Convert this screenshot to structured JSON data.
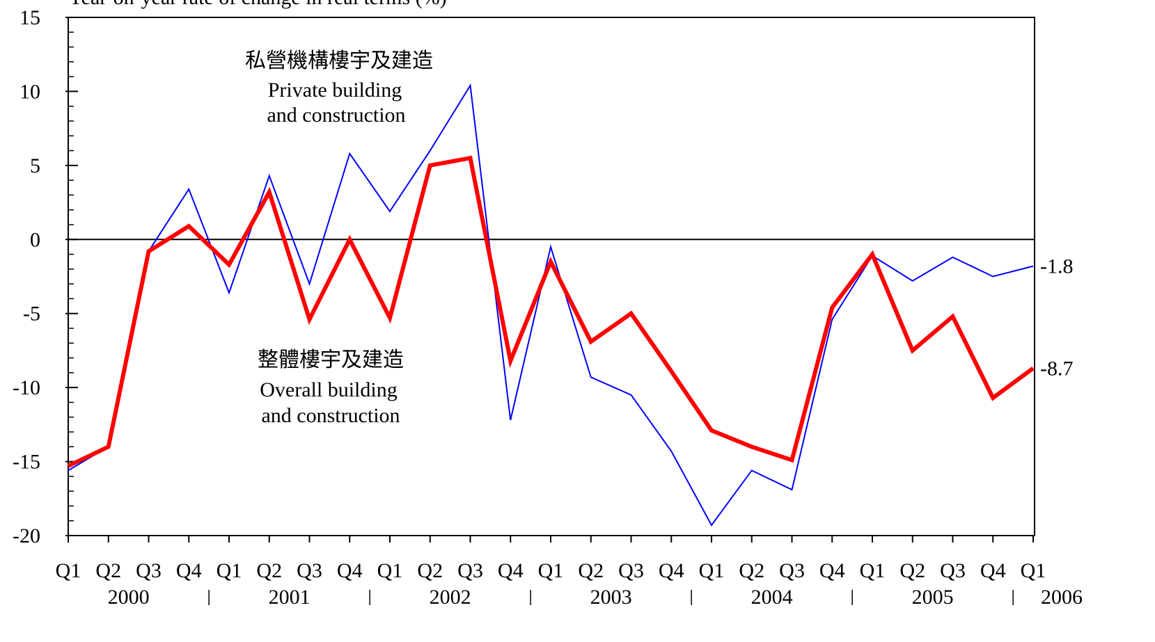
{
  "chart_data": {
    "type": "line",
    "y_axis_label": "Year-on-year rate of change in real terms (%)",
    "categories": [
      "Q1",
      "Q2",
      "Q3",
      "Q4",
      "Q1",
      "Q2",
      "Q3",
      "Q4",
      "Q1",
      "Q2",
      "Q3",
      "Q4",
      "Q1",
      "Q2",
      "Q3",
      "Q4",
      "Q1",
      "Q2",
      "Q3",
      "Q4",
      "Q1",
      "Q2",
      "Q3",
      "Q4",
      "Q1"
    ],
    "years": [
      "2000",
      "2001",
      "2002",
      "2003",
      "2004",
      "2005",
      "2006"
    ],
    "series": [
      {
        "color": "#0000ff",
        "width": 2,
        "values": [
          -15.6,
          -14.0,
          -0.8,
          3.4,
          -3.6,
          4.3,
          -3.0,
          5.8,
          1.9,
          6.0,
          10.4,
          -12.2,
          -0.5,
          -9.3,
          -10.5,
          -14.3,
          -19.3,
          -15.6,
          -16.9,
          -5.4,
          -1.1,
          -2.8,
          -1.2,
          -2.5,
          -1.8
        ]
      },
      {
        "color": "#ff0000",
        "width": 6,
        "values": [
          -15.3,
          -14.0,
          -0.8,
          0.9,
          -1.7,
          3.2,
          -5.4,
          0,
          -5.3,
          5.0,
          5.5,
          -8.2,
          -1.5,
          -6.9,
          -5.0,
          -8.9,
          -12.9,
          -14.0,
          -14.9,
          -4.6,
          -1.0,
          -7.5,
          -5.2,
          -10.7,
          -8.7
        ]
      }
    ],
    "annotations": [
      {
        "text": "私營機構樓宇及建造"
      },
      {
        "text": "Private building"
      },
      {
        "text": "and construction"
      },
      {
        "text": "整體樓宇及建造"
      },
      {
        "text": "Overall building"
      },
      {
        "text": "and construction"
      }
    ],
    "ylim": [
      -20,
      15
    ],
    "yticks": [
      -20,
      -15,
      -10,
      -5,
      0,
      5,
      10,
      15
    ],
    "yminorticks": [
      -19,
      -18,
      -17,
      -16,
      -14,
      -13,
      -12,
      -11,
      -9,
      -8,
      -7,
      -6,
      -4,
      -3,
      -2,
      -1,
      1,
      2,
      3,
      4,
      6,
      7,
      8,
      9,
      11,
      12,
      13,
      14
    ],
    "zero_line": true
  }
}
